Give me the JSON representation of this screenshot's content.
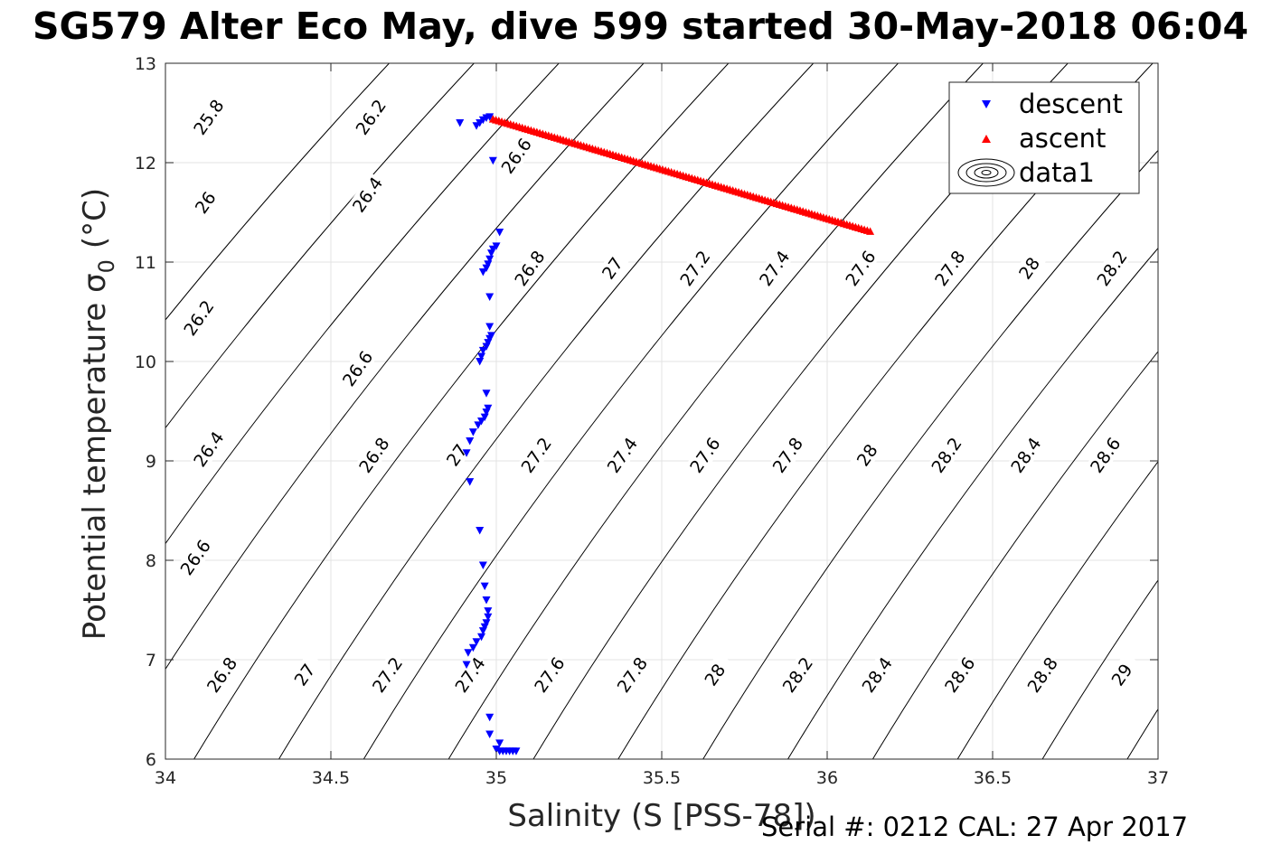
{
  "title": "SG579 Alter Eco May, dive 599 started 30-May-2018 06:04",
  "footer": "Serial #: 0212  CAL: 27 Apr 2017",
  "chart_data": {
    "type": "scatter",
    "xlabel": "Salinity (S [PSS-78])",
    "ylabel": "Potential temperature σ",
    "ylabel_subscript": "0",
    "ylabel_unit": "(°C)",
    "xlim": [
      34,
      37
    ],
    "ylim": [
      6,
      13
    ],
    "xticks": [
      34,
      34.5,
      35,
      35.5,
      36,
      36.5,
      37
    ],
    "xtick_labels": [
      "34",
      "34.5",
      "35",
      "35.5",
      "36",
      "36.5",
      "37"
    ],
    "yticks": [
      6,
      7,
      8,
      9,
      10,
      11,
      12,
      13
    ],
    "ytick_labels": [
      "6",
      "7",
      "8",
      "9",
      "10",
      "11",
      "12",
      "13"
    ],
    "grid": true,
    "legend_position": "top-right",
    "legend": [
      "descent",
      "ascent",
      "data1"
    ],
    "colors": {
      "descent": "#0000ff",
      "ascent": "#ff0000",
      "contour": "#000000",
      "grid": "#e3e3e3"
    },
    "series": [
      {
        "name": "descent",
        "marker": "triangle-down",
        "points": [
          [
            34.89,
            12.4
          ],
          [
            34.94,
            12.37
          ],
          [
            34.95,
            12.4
          ],
          [
            34.96,
            12.43
          ],
          [
            34.97,
            12.45
          ],
          [
            34.98,
            12.46
          ],
          [
            34.99,
            12.02
          ],
          [
            35.01,
            11.3
          ],
          [
            35.0,
            11.16
          ],
          [
            34.99,
            11.13
          ],
          [
            34.985,
            11.09
          ],
          [
            34.98,
            11.03
          ],
          [
            34.975,
            10.98
          ],
          [
            34.97,
            10.94
          ],
          [
            34.96,
            10.9
          ],
          [
            34.98,
            10.65
          ],
          [
            34.98,
            10.35
          ],
          [
            34.985,
            10.26
          ],
          [
            34.98,
            10.23
          ],
          [
            34.975,
            10.19
          ],
          [
            34.97,
            10.15
          ],
          [
            34.96,
            10.11
          ],
          [
            34.955,
            10.05
          ],
          [
            34.95,
            10.0
          ],
          [
            34.97,
            9.68
          ],
          [
            34.975,
            9.53
          ],
          [
            34.97,
            9.49
          ],
          [
            34.965,
            9.44
          ],
          [
            34.955,
            9.4
          ],
          [
            34.945,
            9.36
          ],
          [
            34.93,
            9.29
          ],
          [
            34.92,
            9.2
          ],
          [
            34.91,
            9.08
          ],
          [
            34.92,
            8.79
          ],
          [
            34.95,
            8.3
          ],
          [
            34.96,
            7.95
          ],
          [
            34.965,
            7.74
          ],
          [
            34.97,
            7.6
          ],
          [
            34.975,
            7.49
          ],
          [
            34.975,
            7.43
          ],
          [
            34.97,
            7.37
          ],
          [
            34.965,
            7.33
          ],
          [
            34.96,
            7.29
          ],
          [
            34.955,
            7.23
          ],
          [
            34.94,
            7.18
          ],
          [
            34.93,
            7.12
          ],
          [
            34.915,
            7.07
          ],
          [
            34.91,
            6.95
          ],
          [
            34.98,
            6.42
          ],
          [
            34.98,
            6.25
          ],
          [
            35.01,
            6.16
          ],
          [
            35.0,
            6.1
          ],
          [
            35.01,
            6.08
          ],
          [
            35.02,
            6.08
          ],
          [
            35.03,
            6.08
          ],
          [
            35.04,
            6.08
          ],
          [
            35.05,
            6.08
          ],
          [
            35.06,
            6.08
          ]
        ]
      },
      {
        "name": "ascent",
        "marker": "triangle-up",
        "line_from": [
          34.99,
          12.44
        ],
        "line_to": [
          36.13,
          11.31
        ],
        "n": 130
      }
    ],
    "contour_levels": [
      [
        25.8,
        34.13,
        12.46
      ],
      [
        26.2,
        34.62,
        12.46
      ],
      [
        26,
        34.12,
        11.6
      ],
      [
        26.4,
        34.61,
        11.68
      ],
      [
        26.6,
        35.06,
        12.07
      ],
      [
        26.2,
        34.1,
        10.44
      ],
      [
        26.8,
        35.1,
        10.94
      ],
      [
        27,
        35.35,
        10.94
      ],
      [
        27.2,
        35.6,
        10.94
      ],
      [
        27.4,
        35.84,
        10.94
      ],
      [
        27.6,
        36.1,
        10.94
      ],
      [
        27.8,
        36.37,
        10.94
      ],
      [
        28,
        36.61,
        10.94
      ],
      [
        28.2,
        36.86,
        10.94
      ],
      [
        26.6,
        34.58,
        9.93
      ],
      [
        26.4,
        34.13,
        9.12
      ],
      [
        26.8,
        34.63,
        9.06
      ],
      [
        27,
        34.88,
        9.06
      ],
      [
        27.2,
        35.12,
        9.06
      ],
      [
        27.4,
        35.38,
        9.06
      ],
      [
        27.6,
        35.63,
        9.06
      ],
      [
        27.8,
        35.88,
        9.06
      ],
      [
        28,
        36.12,
        9.06
      ],
      [
        28.2,
        36.36,
        9.06
      ],
      [
        28.4,
        36.6,
        9.06
      ],
      [
        28.6,
        36.84,
        9.06
      ],
      [
        26.6,
        34.09,
        8.03
      ],
      [
        26.8,
        34.17,
        6.85
      ],
      [
        27,
        34.42,
        6.85
      ],
      [
        27.2,
        34.67,
        6.85
      ],
      [
        27.4,
        34.92,
        6.85
      ],
      [
        27.6,
        35.16,
        6.85
      ],
      [
        27.8,
        35.41,
        6.85
      ],
      [
        28,
        35.66,
        6.85
      ],
      [
        28.2,
        35.91,
        6.85
      ],
      [
        28.4,
        36.15,
        6.85
      ],
      [
        28.6,
        36.4,
        6.85
      ],
      [
        28.8,
        36.65,
        6.85
      ],
      [
        29,
        36.89,
        6.85
      ]
    ]
  }
}
